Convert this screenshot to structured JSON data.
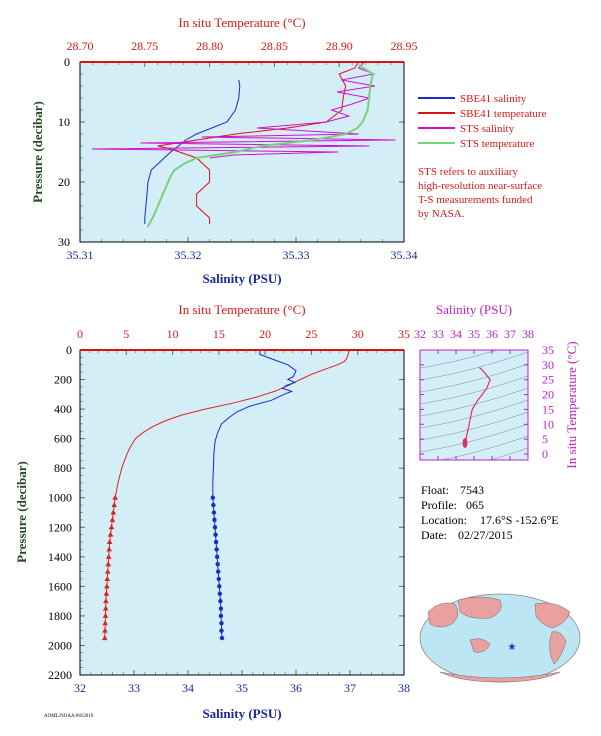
{
  "chart_data": [
    {
      "type": "line",
      "title": "",
      "top_axis": {
        "label": "In situ Temperature (°C)",
        "range": [
          28.7,
          28.95
        ],
        "ticks": [
          "28.70",
          "28.75",
          "28.80",
          "28.85",
          "28.90",
          "28.95"
        ],
        "color": "#d81818"
      },
      "bottom_axis": {
        "label": "Salinity (PSU)",
        "range": [
          35.31,
          35.34
        ],
        "ticks": [
          "35.31",
          "35.32",
          "35.33",
          "35.34"
        ],
        "color": "#1a2a9a"
      },
      "left_axis": {
        "label": "Pressure (decibar)",
        "range": [
          0,
          30
        ],
        "inverted": true,
        "ticks": [
          "0",
          "10",
          "20",
          "30"
        ]
      },
      "legend": {
        "placement": "right",
        "entries": [
          {
            "name": "SBE41 salinity",
            "color": "#1a2acc"
          },
          {
            "name": "SBE41 temperature",
            "color": "#e01010"
          },
          {
            "name": "STS salinity",
            "color": "#d010d0"
          },
          {
            "name": "STS temperature",
            "color": "#7ad07a"
          }
        ]
      },
      "note": [
        "STS refers to auxiliary",
        "high-resolution near-surface",
        "T-S measurements funded",
        "by NASA."
      ],
      "series": [
        {
          "name": "SBE41 salinity",
          "axis": "salinity",
          "pressure": [
            3,
            4,
            6,
            8,
            10,
            12,
            13,
            14,
            15,
            16,
            17,
            18,
            20,
            22,
            24,
            26,
            27
          ],
          "values": [
            35.3247,
            35.3248,
            35.3247,
            35.3244,
            35.3236,
            35.3208,
            35.3198,
            35.3191,
            35.3184,
            35.3178,
            35.3172,
            35.3166,
            35.3163,
            35.3162,
            35.3161,
            35.316,
            35.316
          ]
        },
        {
          "name": "SBE41 temperature",
          "axis": "temperature",
          "pressure": [
            0,
            1,
            2,
            4,
            6,
            8,
            10,
            11,
            12,
            13,
            14,
            14.5,
            16,
            18,
            20,
            22,
            24,
            26,
            27
          ],
          "values": [
            28.915,
            28.912,
            28.9,
            28.905,
            28.903,
            28.902,
            28.89,
            28.86,
            28.82,
            28.79,
            28.76,
            28.77,
            28.79,
            28.8,
            28.8,
            28.79,
            28.79,
            28.8,
            28.8
          ]
        },
        {
          "name": "STS salinity",
          "axis": "salinity",
          "pressure": [
            0,
            1,
            2,
            3,
            4,
            5,
            6,
            7,
            8,
            9,
            10,
            11,
            12,
            12.5,
            13,
            13.5,
            14,
            14.5,
            15,
            15.5,
            16
          ],
          "values": [
            35.3363,
            35.3358,
            35.3372,
            35.3342,
            35.3373,
            35.3338,
            35.3368,
            35.3352,
            35.3333,
            35.3349,
            35.3328,
            35.3264,
            35.3358,
            35.3213,
            35.3392,
            35.3156,
            35.3368,
            35.3111,
            35.3339,
            35.3242,
            35.322
          ]
        },
        {
          "name": "STS temperature",
          "axis": "temperature",
          "pressure": [
            0.5,
            2,
            4,
            6,
            8,
            10,
            11,
            12,
            13,
            14,
            15,
            16,
            17,
            18,
            19,
            20,
            22,
            24,
            26,
            27.5
          ],
          "values": [
            28.915,
            28.926,
            28.924,
            28.923,
            28.922,
            28.918,
            28.914,
            28.905,
            28.88,
            28.84,
            28.82,
            28.79,
            28.78,
            28.773,
            28.77,
            28.768,
            28.764,
            28.76,
            28.756,
            28.752
          ]
        }
      ]
    },
    {
      "type": "line",
      "top_axis": {
        "label": "In situ Temperature (°C)",
        "range": [
          0,
          35
        ],
        "ticks": [
          "0",
          "5",
          "10",
          "15",
          "20",
          "25",
          "30",
          "35"
        ],
        "color": "#d81818"
      },
      "bottom_axis": {
        "label": "Salinity (PSU)",
        "range": [
          32,
          38
        ],
        "ticks": [
          "32",
          "33",
          "34",
          "35",
          "36",
          "37",
          "38"
        ],
        "color": "#1a2a9a"
      },
      "left_axis": {
        "label": "Pressure (decibar)",
        "range": [
          0,
          2200
        ],
        "inverted": true,
        "ticks": [
          "0",
          "200",
          "400",
          "600",
          "800",
          "1000",
          "1200",
          "1400",
          "1600",
          "1800",
          "2000",
          "2200"
        ]
      },
      "series": [
        {
          "name": "",
          "axis": "temperature",
          "color": "#e02020",
          "pressure": [
            0,
            20,
            40,
            60,
            80,
            100,
            130,
            160,
            200,
            240,
            280,
            320,
            360,
            400,
            440,
            480,
            520,
            560,
            600,
            650,
            700,
            750,
            800,
            850,
            900,
            950,
            1000
          ],
          "values": [
            29.1,
            29.0,
            28.9,
            28.8,
            28.5,
            27.8,
            26.5,
            25.2,
            23.8,
            22.5,
            21.0,
            19.0,
            16.5,
            13.5,
            11.0,
            9.2,
            7.8,
            6.8,
            6.0,
            5.5,
            5.1,
            4.8,
            4.5,
            4.3,
            4.1,
            3.95,
            3.8
          ]
        },
        {
          "name": "",
          "axis": "salinity",
          "color": "#1a2acc",
          "pressure": [
            0,
            30,
            60,
            100,
            140,
            180,
            200,
            220,
            240,
            260,
            280,
            300,
            340,
            380,
            420,
            460,
            500,
            560,
            620,
            700,
            800,
            900,
            1000
          ],
          "values": [
            35.33,
            35.33,
            35.55,
            35.85,
            36.0,
            35.95,
            35.85,
            35.98,
            35.82,
            35.75,
            35.92,
            35.78,
            35.55,
            35.15,
            34.9,
            34.75,
            34.62,
            34.55,
            34.5,
            34.48,
            34.47,
            34.46,
            34.46
          ]
        },
        {
          "name": "",
          "axis": "temperature",
          "color": "#e02020",
          "marker": "triangle",
          "pressure": [
            1000,
            1050,
            1100,
            1150,
            1200,
            1250,
            1300,
            1350,
            1400,
            1450,
            1500,
            1550,
            1600,
            1650,
            1700,
            1750,
            1800,
            1850,
            1900,
            1950
          ],
          "values": [
            3.8,
            3.7,
            3.6,
            3.5,
            3.4,
            3.3,
            3.2,
            3.15,
            3.1,
            3.05,
            3.0,
            2.95,
            2.9,
            2.85,
            2.8,
            2.78,
            2.75,
            2.72,
            2.7,
            2.68
          ]
        },
        {
          "name": "",
          "axis": "salinity",
          "color": "#1a2acc",
          "marker": "circle",
          "pressure": [
            1000,
            1050,
            1100,
            1150,
            1200,
            1250,
            1300,
            1350,
            1400,
            1450,
            1500,
            1550,
            1600,
            1650,
            1700,
            1750,
            1800,
            1850,
            1900,
            1950
          ],
          "values": [
            34.46,
            34.47,
            34.48,
            34.49,
            34.5,
            34.51,
            34.52,
            34.53,
            34.54,
            34.55,
            34.56,
            34.57,
            34.58,
            34.59,
            34.6,
            34.61,
            34.61,
            34.62,
            34.62,
            34.63
          ]
        }
      ]
    },
    {
      "type": "scatter",
      "top_axis": {
        "label": "Salinity (PSU)",
        "range": [
          32,
          38
        ],
        "ticks": [
          "32",
          "33",
          "34",
          "35",
          "36",
          "37",
          "38"
        ],
        "color": "#c020c0"
      },
      "right_axis": {
        "label": "In situ Temperature (°C)",
        "range": [
          0,
          35
        ],
        "ticks": [
          "0",
          "5",
          "10",
          "15",
          "20",
          "25",
          "30",
          "35"
        ],
        "color": "#c020c0"
      },
      "series": [
        {
          "name": "",
          "color": "#e03060",
          "salinity": [
            35.3,
            35.5,
            35.9,
            35.7,
            35.2,
            34.9,
            34.8,
            34.7,
            34.6,
            34.55,
            34.5,
            34.5
          ],
          "temperature": [
            29.1,
            28.0,
            25.0,
            22.0,
            18.0,
            15.0,
            12.0,
            9.0,
            6.5,
            4.5,
            3.5,
            2.7
          ]
        }
      ]
    }
  ],
  "info": {
    "float_label": "Float:",
    "float_value": "7543",
    "profile_label": "Profile:",
    "profile_value": "065",
    "location_label": "Location:",
    "location_value": "17.6°S  -152.6°E",
    "date_label": "Date:",
    "date_value": "02/27/2015"
  },
  "footer_text": "AOML/NOAA  8/8/2016",
  "colors": {
    "plot_bg": "#d4eef8",
    "frame": "#000000",
    "temp_axis": "#d81818",
    "sal_axis": "#1a2a9a",
    "ts_axis": "#c020c0",
    "pressure_axis": "#2a4a2a",
    "tick": "#2e8b57",
    "map_ocean": "#bde6f5",
    "map_land": "#e8a0a0"
  }
}
